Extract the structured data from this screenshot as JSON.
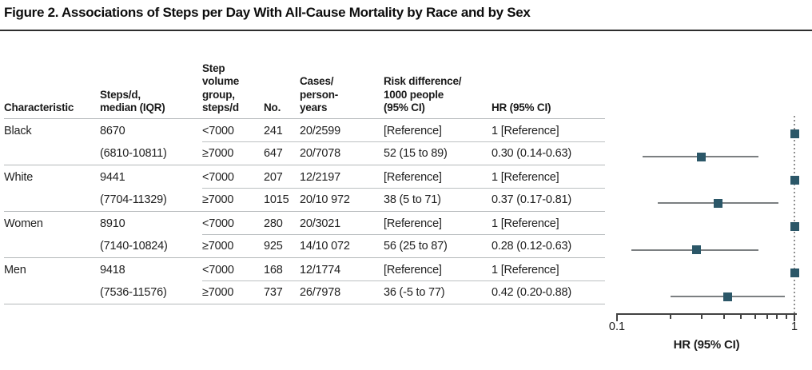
{
  "title": "Figure 2. Associations of Steps per Day With All-Cause Mortality by Race and by Sex",
  "table": {
    "headers": [
      "Characteristic",
      "Steps/d,\nmedian (IQR)",
      "Step\nvolume\ngroup,\nsteps/d",
      "No.",
      "Cases/\nperson-\nyears",
      "Risk difference/\n1000 people\n(95% CI)",
      "HR (95% CI)"
    ],
    "groups": [
      {
        "characteristic": "Black",
        "median": "8670",
        "iqr": "(6810-10811)",
        "rows": [
          {
            "volume": "<7000",
            "no": "241",
            "cases": "20/2599",
            "risk": "[Reference]",
            "hr": "1 [Reference]"
          },
          {
            "volume": "≥7000",
            "no": "647",
            "cases": "20/7078",
            "risk": "52 (15 to 89)",
            "hr": "0.30 (0.14-0.63)"
          }
        ]
      },
      {
        "characteristic": "White",
        "median": "9441",
        "iqr": "(7704-11329)",
        "rows": [
          {
            "volume": "<7000",
            "no": "207",
            "cases": "12/2197",
            "risk": "[Reference]",
            "hr": "1 [Reference]"
          },
          {
            "volume": "≥7000",
            "no": "1015",
            "cases": "20/10 972",
            "risk": "38 (5 to 71)",
            "hr": "0.37 (0.17-0.81)"
          }
        ]
      },
      {
        "characteristic": "Women",
        "median": "8910",
        "iqr": "(7140-10824)",
        "rows": [
          {
            "volume": "<7000",
            "no": "280",
            "cases": "20/3021",
            "risk": "[Reference]",
            "hr": "1 [Reference]"
          },
          {
            "volume": "≥7000",
            "no": "925",
            "cases": "14/10 072",
            "risk": "56 (25 to 87)",
            "hr": "0.28 (0.12-0.63)"
          }
        ]
      },
      {
        "characteristic": "Men",
        "median": "9418",
        "iqr": "(7536-11576)",
        "rows": [
          {
            "volume": "<7000",
            "no": "168",
            "cases": "12/1774",
            "risk": "[Reference]",
            "hr": "1 [Reference]"
          },
          {
            "volume": "≥7000",
            "no": "737",
            "cases": "26/7978",
            "risk": "36 (-5 to 77)",
            "hr": "0.42 (0.20-0.88)"
          }
        ]
      }
    ]
  },
  "chart_data": {
    "type": "forest",
    "x_scale": "log",
    "xlim": [
      0.1,
      1
    ],
    "x_ticks": [
      0.1,
      0.2,
      0.3,
      0.4,
      0.5,
      0.6,
      0.7,
      0.8,
      0.9,
      1
    ],
    "x_tick_labels": [
      "0.1",
      "1"
    ],
    "xlabel": "HR (95% CI)",
    "reference_line": 1,
    "marker_color": "#2b5768",
    "rows": [
      {
        "label": "Black <7000 steps/d",
        "hr": 1,
        "reference": true
      },
      {
        "label": "Black ≥7000 steps/d",
        "hr": 0.3,
        "lo": 0.14,
        "hi": 0.63
      },
      {
        "label": "White <7000 steps/d",
        "hr": 1,
        "reference": true
      },
      {
        "label": "White ≥7000 steps/d",
        "hr": 0.37,
        "lo": 0.17,
        "hi": 0.81
      },
      {
        "label": "Women <7000 steps/d",
        "hr": 1,
        "reference": true
      },
      {
        "label": "Women ≥7000 steps/d",
        "hr": 0.28,
        "lo": 0.12,
        "hi": 0.63
      },
      {
        "label": "Men <7000 steps/d",
        "hr": 1,
        "reference": true
      },
      {
        "label": "Men ≥7000 steps/d",
        "hr": 0.42,
        "lo": 0.2,
        "hi": 0.88
      }
    ]
  }
}
